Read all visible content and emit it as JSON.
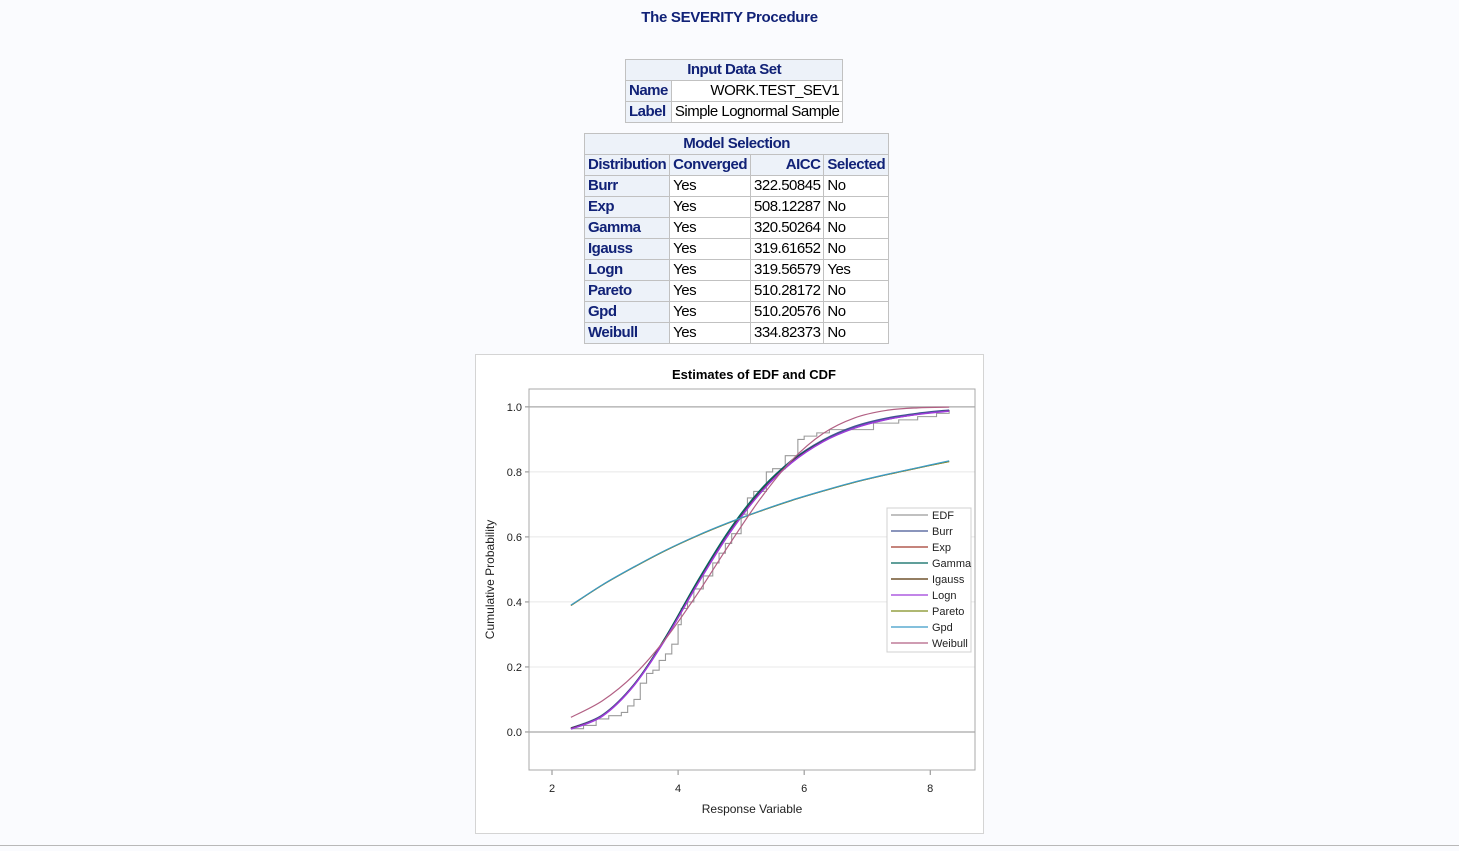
{
  "page_title": "The SEVERITY Procedure",
  "input_data_set": {
    "title": "Input Data Set",
    "rows": [
      {
        "label": "Name",
        "value": "WORK.TEST_SEV1"
      },
      {
        "label": "Label",
        "value": "Simple Lognormal Sample"
      }
    ]
  },
  "model_selection": {
    "title": "Model Selection",
    "headers": [
      "Distribution",
      "Converged",
      "AICC",
      "Selected"
    ],
    "rows": [
      [
        "Burr",
        "Yes",
        "322.50845",
        "No"
      ],
      [
        "Exp",
        "Yes",
        "508.12287",
        "No"
      ],
      [
        "Gamma",
        "Yes",
        "320.50264",
        "No"
      ],
      [
        "Igauss",
        "Yes",
        "319.61652",
        "No"
      ],
      [
        "Logn",
        "Yes",
        "319.56579",
        "Yes"
      ],
      [
        "Pareto",
        "Yes",
        "510.28172",
        "No"
      ],
      [
        "Gpd",
        "Yes",
        "510.20576",
        "No"
      ],
      [
        "Weibull",
        "Yes",
        "334.82373",
        "No"
      ]
    ]
  },
  "chart_data": {
    "type": "line",
    "title": "Estimates of EDF and CDF",
    "xlabel": "Response Variable",
    "ylabel": "Cumulative Probability",
    "xlim": [
      1.635,
      8.71
    ],
    "ylim": [
      -0.117,
      1.055
    ],
    "xticks": [
      2,
      4,
      6,
      8
    ],
    "yticks": [
      "0.0",
      "0.2",
      "0.4",
      "0.6",
      "0.8",
      "1.0"
    ],
    "reference_lines_y": [
      0,
      1
    ],
    "grid": true,
    "legend_position": "right",
    "x": [
      2.3,
      2.8,
      3.3,
      3.8,
      4.3,
      4.8,
      5.3,
      5.8,
      6.3,
      6.8,
      7.3,
      7.8,
      8.3
    ],
    "edf_steps": [
      [
        2.3,
        0.01
      ],
      [
        2.5,
        0.02
      ],
      [
        2.7,
        0.04
      ],
      [
        2.9,
        0.05
      ],
      [
        3.1,
        0.06
      ],
      [
        3.2,
        0.08
      ],
      [
        3.3,
        0.1
      ],
      [
        3.4,
        0.15
      ],
      [
        3.5,
        0.18
      ],
      [
        3.6,
        0.19
      ],
      [
        3.7,
        0.22
      ],
      [
        3.8,
        0.24
      ],
      [
        3.9,
        0.27
      ],
      [
        4.0,
        0.33
      ],
      [
        4.05,
        0.38
      ],
      [
        4.15,
        0.4
      ],
      [
        4.25,
        0.44
      ],
      [
        4.4,
        0.48
      ],
      [
        4.55,
        0.52
      ],
      [
        4.65,
        0.55
      ],
      [
        4.75,
        0.58
      ],
      [
        4.85,
        0.61
      ],
      [
        5.0,
        0.67
      ],
      [
        5.1,
        0.72
      ],
      [
        5.2,
        0.74
      ],
      [
        5.4,
        0.8
      ],
      [
        5.5,
        0.81
      ],
      [
        5.7,
        0.85
      ],
      [
        5.9,
        0.9
      ],
      [
        6.0,
        0.91
      ],
      [
        6.2,
        0.92
      ],
      [
        6.4,
        0.93
      ],
      [
        7.0,
        0.93
      ],
      [
        7.1,
        0.95
      ],
      [
        7.5,
        0.96
      ],
      [
        7.8,
        0.97
      ],
      [
        8.1,
        0.98
      ],
      [
        8.3,
        0.99
      ]
    ],
    "series": [
      {
        "name": "EDF",
        "color": "#9a9a9a",
        "values": null
      },
      {
        "name": "Burr",
        "color": "#445694",
        "values": [
          0.012,
          0.052,
          0.146,
          0.29,
          0.458,
          0.615,
          0.742,
          0.835,
          0.898,
          0.94,
          0.965,
          0.98,
          0.99
        ]
      },
      {
        "name": "Exp",
        "color": "#a23a2e",
        "values": [
          0.389,
          0.452,
          0.507,
          0.558,
          0.603,
          0.643,
          0.679,
          0.712,
          0.741,
          0.768,
          0.791,
          0.812,
          0.832
        ]
      },
      {
        "name": "Gamma",
        "color": "#01665e",
        "values": [
          0.01,
          0.05,
          0.145,
          0.292,
          0.462,
          0.618,
          0.744,
          0.834,
          0.895,
          0.936,
          0.962,
          0.978,
          0.988
        ]
      },
      {
        "name": "Igauss",
        "color": "#543005",
        "values": [
          0.011,
          0.05,
          0.144,
          0.288,
          0.455,
          0.61,
          0.737,
          0.83,
          0.894,
          0.935,
          0.961,
          0.977,
          0.988
        ]
      },
      {
        "name": "Logn",
        "color": "#9d3cdb",
        "values": [
          0.009,
          0.049,
          0.143,
          0.286,
          0.452,
          0.607,
          0.734,
          0.828,
          0.893,
          0.935,
          0.961,
          0.977,
          0.987
        ]
      },
      {
        "name": "Pareto",
        "color": "#7f8e1f",
        "values": [
          0.389,
          0.452,
          0.507,
          0.558,
          0.603,
          0.643,
          0.679,
          0.712,
          0.741,
          0.768,
          0.791,
          0.812,
          0.832
        ]
      },
      {
        "name": "Gpd",
        "color": "#3a9ac7",
        "values": [
          0.39,
          0.453,
          0.508,
          0.559,
          0.604,
          0.644,
          0.68,
          0.713,
          0.742,
          0.769,
          0.792,
          0.813,
          0.834
        ]
      },
      {
        "name": "Weibull",
        "color": "#b26084",
        "values": [
          0.045,
          0.096,
          0.175,
          0.286,
          0.423,
          0.573,
          0.716,
          0.835,
          0.918,
          0.966,
          0.989,
          0.997,
          0.999
        ]
      }
    ]
  }
}
